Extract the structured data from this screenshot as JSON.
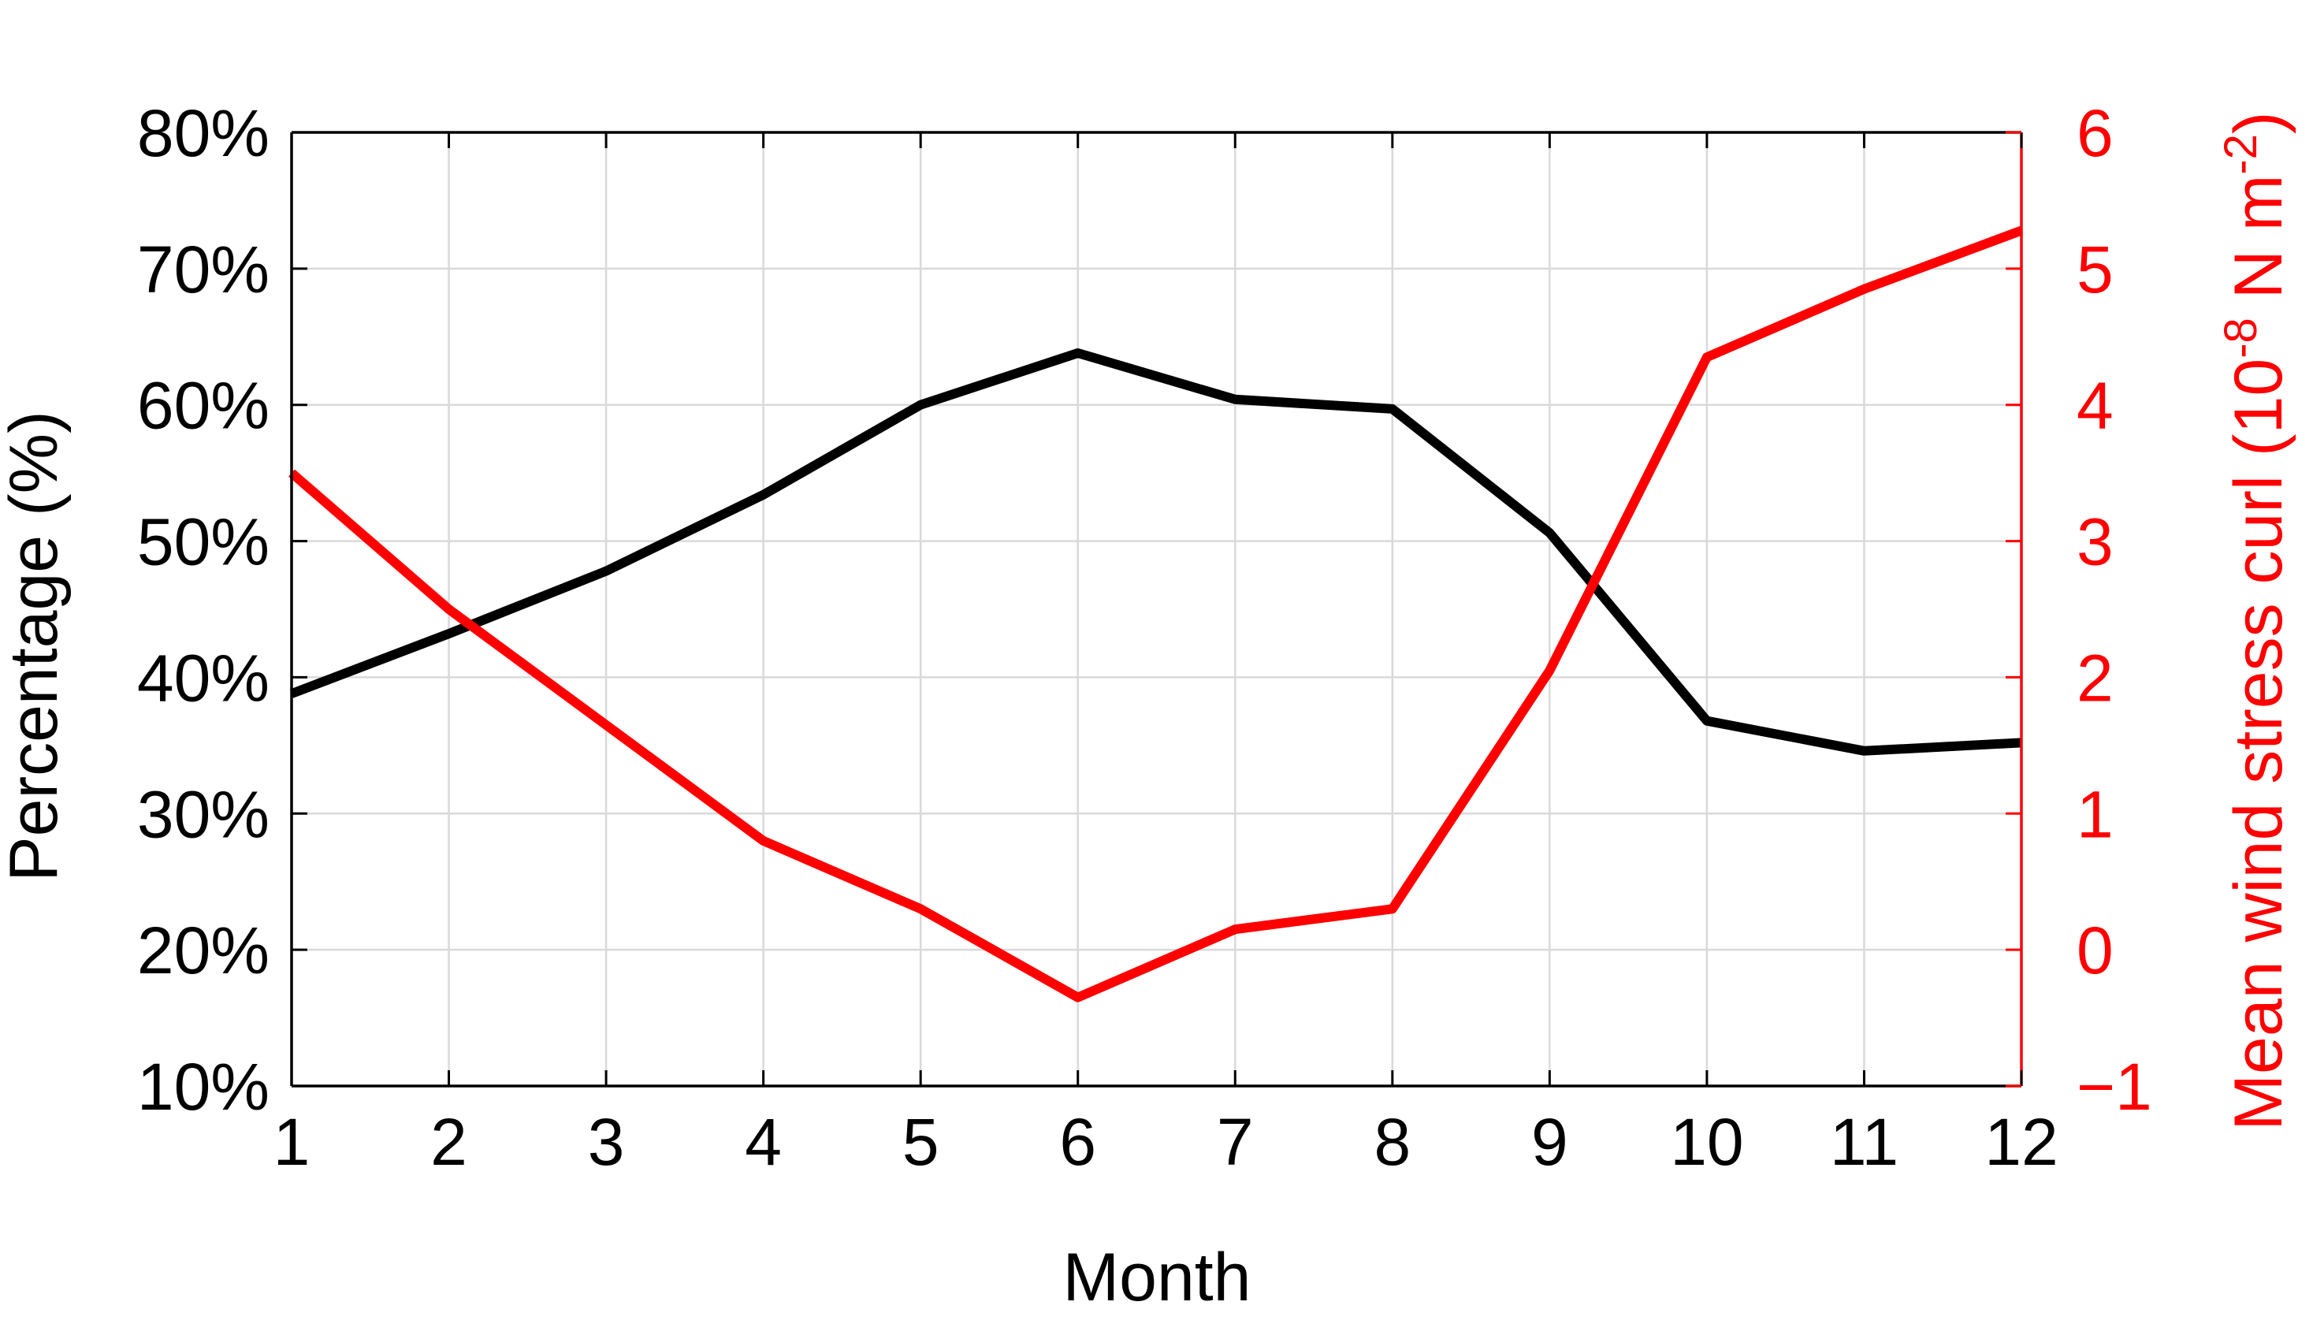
{
  "chart_data": {
    "type": "line",
    "x": [
      1,
      2,
      3,
      4,
      5,
      6,
      7,
      8,
      9,
      10,
      11,
      12
    ],
    "xlabel": "Month",
    "xlim": [
      1,
      12
    ],
    "x_ticks": [
      "1",
      "2",
      "3",
      "4",
      "5",
      "6",
      "7",
      "8",
      "9",
      "10",
      "11",
      "12"
    ],
    "ylabel_left": "Percentage (%)",
    "ylim_left": [
      10,
      80
    ],
    "y_ticks_left": [
      "10%",
      "20%",
      "30%",
      "40%",
      "50%",
      "60%",
      "70%",
      "80%"
    ],
    "ylabel_right": {
      "prefix": "Mean wind stress curl (10",
      "exp1": "-8",
      "middle": " N m",
      "exp2": "-2",
      "suffix": ")"
    },
    "ylim_right": [
      -1,
      6
    ],
    "y_ticks_right": [
      "−1",
      "0",
      "1",
      "2",
      "3",
      "4",
      "5",
      "6"
    ],
    "grid": true,
    "series": [
      {
        "axis": "left",
        "color": "#000000",
        "values": [
          38.8,
          43.2,
          47.8,
          53.4,
          60.0,
          63.8,
          60.4,
          59.7,
          50.6,
          36.8,
          34.6,
          35.2
        ]
      },
      {
        "axis": "right",
        "color": "#ff0000",
        "values": [
          3.5,
          2.5,
          1.65,
          0.8,
          0.3,
          -0.35,
          0.15,
          0.3,
          2.05,
          4.35,
          4.85,
          5.28
        ]
      }
    ],
    "colors": {
      "left_axis": "#000000",
      "right_axis": "#ff0000",
      "grid": "#d9d9d9"
    }
  }
}
